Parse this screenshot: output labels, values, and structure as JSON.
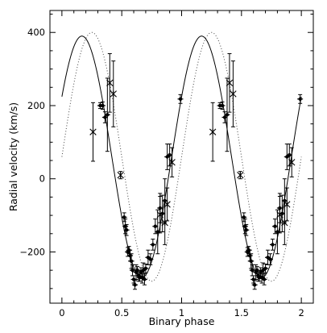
{
  "chart_data": {
    "type": "scatter",
    "xlabel": "Binary phase",
    "ylabel": "Radial velocity (km/s)",
    "xlim": [
      -0.1,
      2.1
    ],
    "ylim": [
      -340,
      460
    ],
    "x_ticks": [
      0,
      0.5,
      1,
      1.5,
      2
    ],
    "x_tick_labels": [
      "0",
      "0.5",
      "1",
      "1.5",
      "2"
    ],
    "y_ticks": [
      -200,
      0,
      200,
      400
    ],
    "y_tick_labels": [
      "−200",
      "0",
      "200",
      "400"
    ],
    "grid": false,
    "legend": "none",
    "series": [
      {
        "style": "solid-line",
        "color": "#000000",
        "amplitude": 330,
        "offset": 60,
        "peak_phase": 0.167,
        "x_range": [
          0,
          2
        ]
      },
      {
        "style": "dotted-line",
        "color": "#444444",
        "amplitude": 340,
        "offset": 60,
        "peak_phase": 0.25,
        "x_range": [
          0,
          2
        ]
      },
      {
        "style": "filled-points",
        "color": "#000000",
        "points": [
          {
            "x": 0.32,
            "y": 200,
            "err": 8
          },
          {
            "x": 0.34,
            "y": 200,
            "err": 10
          },
          {
            "x": 0.36,
            "y": 168,
            "err": 15
          },
          {
            "x": 0.38,
            "y": 175,
            "err": 100
          },
          {
            "x": 0.52,
            "y": -105,
            "err": 12
          },
          {
            "x": 0.53,
            "y": -130,
            "err": 20
          },
          {
            "x": 0.54,
            "y": -140,
            "err": 15
          },
          {
            "x": 0.55,
            "y": -200,
            "err": 12
          },
          {
            "x": 0.56,
            "y": -195,
            "err": 10
          },
          {
            "x": 0.57,
            "y": -210,
            "err": 15
          },
          {
            "x": 0.58,
            "y": -225,
            "err": 20
          },
          {
            "x": 0.59,
            "y": -250,
            "err": 15
          },
          {
            "x": 0.6,
            "y": -275,
            "err": 10
          },
          {
            "x": 0.61,
            "y": -290,
            "err": 12
          },
          {
            "x": 0.62,
            "y": -255,
            "err": 20
          },
          {
            "x": 0.63,
            "y": -250,
            "err": 10
          },
          {
            "x": 0.64,
            "y": -265,
            "err": 15
          },
          {
            "x": 0.65,
            "y": -270,
            "err": 10
          },
          {
            "x": 0.66,
            "y": -255,
            "err": 12
          },
          {
            "x": 0.67,
            "y": -270,
            "err": 15
          },
          {
            "x": 0.68,
            "y": -250,
            "err": 20
          },
          {
            "x": 0.69,
            "y": -275,
            "err": 15
          },
          {
            "x": 0.7,
            "y": -245,
            "err": 12
          },
          {
            "x": 0.72,
            "y": -215,
            "err": 20
          },
          {
            "x": 0.74,
            "y": -220,
            "err": 15
          },
          {
            "x": 0.76,
            "y": -180,
            "err": 15
          },
          {
            "x": 0.78,
            "y": -130,
            "err": 20
          },
          {
            "x": 0.8,
            "y": -145,
            "err": 60
          },
          {
            "x": 0.82,
            "y": -80,
            "err": 40
          },
          {
            "x": 0.84,
            "y": -95,
            "err": 50
          },
          {
            "x": 0.86,
            "y": -60,
            "err": 60
          },
          {
            "x": 0.88,
            "y": 60,
            "err": 35
          },
          {
            "x": 0.9,
            "y": 65,
            "err": 30
          },
          {
            "x": 0.99,
            "y": 218,
            "err": 12
          },
          {
            "x": 1.32,
            "y": 200,
            "err": 8
          },
          {
            "x": 1.34,
            "y": 200,
            "err": 10
          },
          {
            "x": 1.36,
            "y": 168,
            "err": 15
          },
          {
            "x": 1.38,
            "y": 175,
            "err": 100
          },
          {
            "x": 1.52,
            "y": -105,
            "err": 12
          },
          {
            "x": 1.53,
            "y": -130,
            "err": 20
          },
          {
            "x": 1.54,
            "y": -140,
            "err": 15
          },
          {
            "x": 1.55,
            "y": -200,
            "err": 12
          },
          {
            "x": 1.56,
            "y": -195,
            "err": 10
          },
          {
            "x": 1.57,
            "y": -210,
            "err": 15
          },
          {
            "x": 1.58,
            "y": -225,
            "err": 20
          },
          {
            "x": 1.59,
            "y": -250,
            "err": 15
          },
          {
            "x": 1.6,
            "y": -275,
            "err": 10
          },
          {
            "x": 1.61,
            "y": -290,
            "err": 12
          },
          {
            "x": 1.62,
            "y": -255,
            "err": 20
          },
          {
            "x": 1.63,
            "y": -250,
            "err": 10
          },
          {
            "x": 1.64,
            "y": -265,
            "err": 15
          },
          {
            "x": 1.65,
            "y": -270,
            "err": 10
          },
          {
            "x": 1.66,
            "y": -255,
            "err": 12
          },
          {
            "x": 1.67,
            "y": -270,
            "err": 15
          },
          {
            "x": 1.68,
            "y": -250,
            "err": 20
          },
          {
            "x": 1.69,
            "y": -275,
            "err": 15
          },
          {
            "x": 1.7,
            "y": -245,
            "err": 12
          },
          {
            "x": 1.72,
            "y": -215,
            "err": 20
          },
          {
            "x": 1.74,
            "y": -220,
            "err": 15
          },
          {
            "x": 1.76,
            "y": -180,
            "err": 15
          },
          {
            "x": 1.78,
            "y": -130,
            "err": 20
          },
          {
            "x": 1.8,
            "y": -145,
            "err": 60
          },
          {
            "x": 1.82,
            "y": -80,
            "err": 40
          },
          {
            "x": 1.84,
            "y": -95,
            "err": 50
          },
          {
            "x": 1.86,
            "y": -60,
            "err": 60
          },
          {
            "x": 1.88,
            "y": 60,
            "err": 35
          },
          {
            "x": 1.9,
            "y": 65,
            "err": 30
          },
          {
            "x": 1.99,
            "y": 218,
            "err": 12
          }
        ]
      },
      {
        "style": "star-points",
        "color": "#000000",
        "points": [
          {
            "x": 0.26,
            "y": 128,
            "err": 80
          },
          {
            "x": 0.4,
            "y": 262,
            "err": 80
          },
          {
            "x": 0.43,
            "y": 232,
            "err": 90
          },
          {
            "x": 0.49,
            "y": 10,
            "err": 10
          },
          {
            "x": 0.82,
            "y": -98,
            "err": 50
          },
          {
            "x": 0.86,
            "y": -120,
            "err": 60
          },
          {
            "x": 0.88,
            "y": -70,
            "err": 45
          },
          {
            "x": 0.92,
            "y": 45,
            "err": 40
          },
          {
            "x": 1.26,
            "y": 128,
            "err": 80
          },
          {
            "x": 1.4,
            "y": 262,
            "err": 80
          },
          {
            "x": 1.43,
            "y": 232,
            "err": 90
          },
          {
            "x": 1.49,
            "y": 10,
            "err": 10
          },
          {
            "x": 1.82,
            "y": -98,
            "err": 50
          },
          {
            "x": 1.86,
            "y": -120,
            "err": 60
          },
          {
            "x": 1.88,
            "y": -70,
            "err": 45
          },
          {
            "x": 1.92,
            "y": 45,
            "err": 40
          }
        ]
      }
    ]
  }
}
